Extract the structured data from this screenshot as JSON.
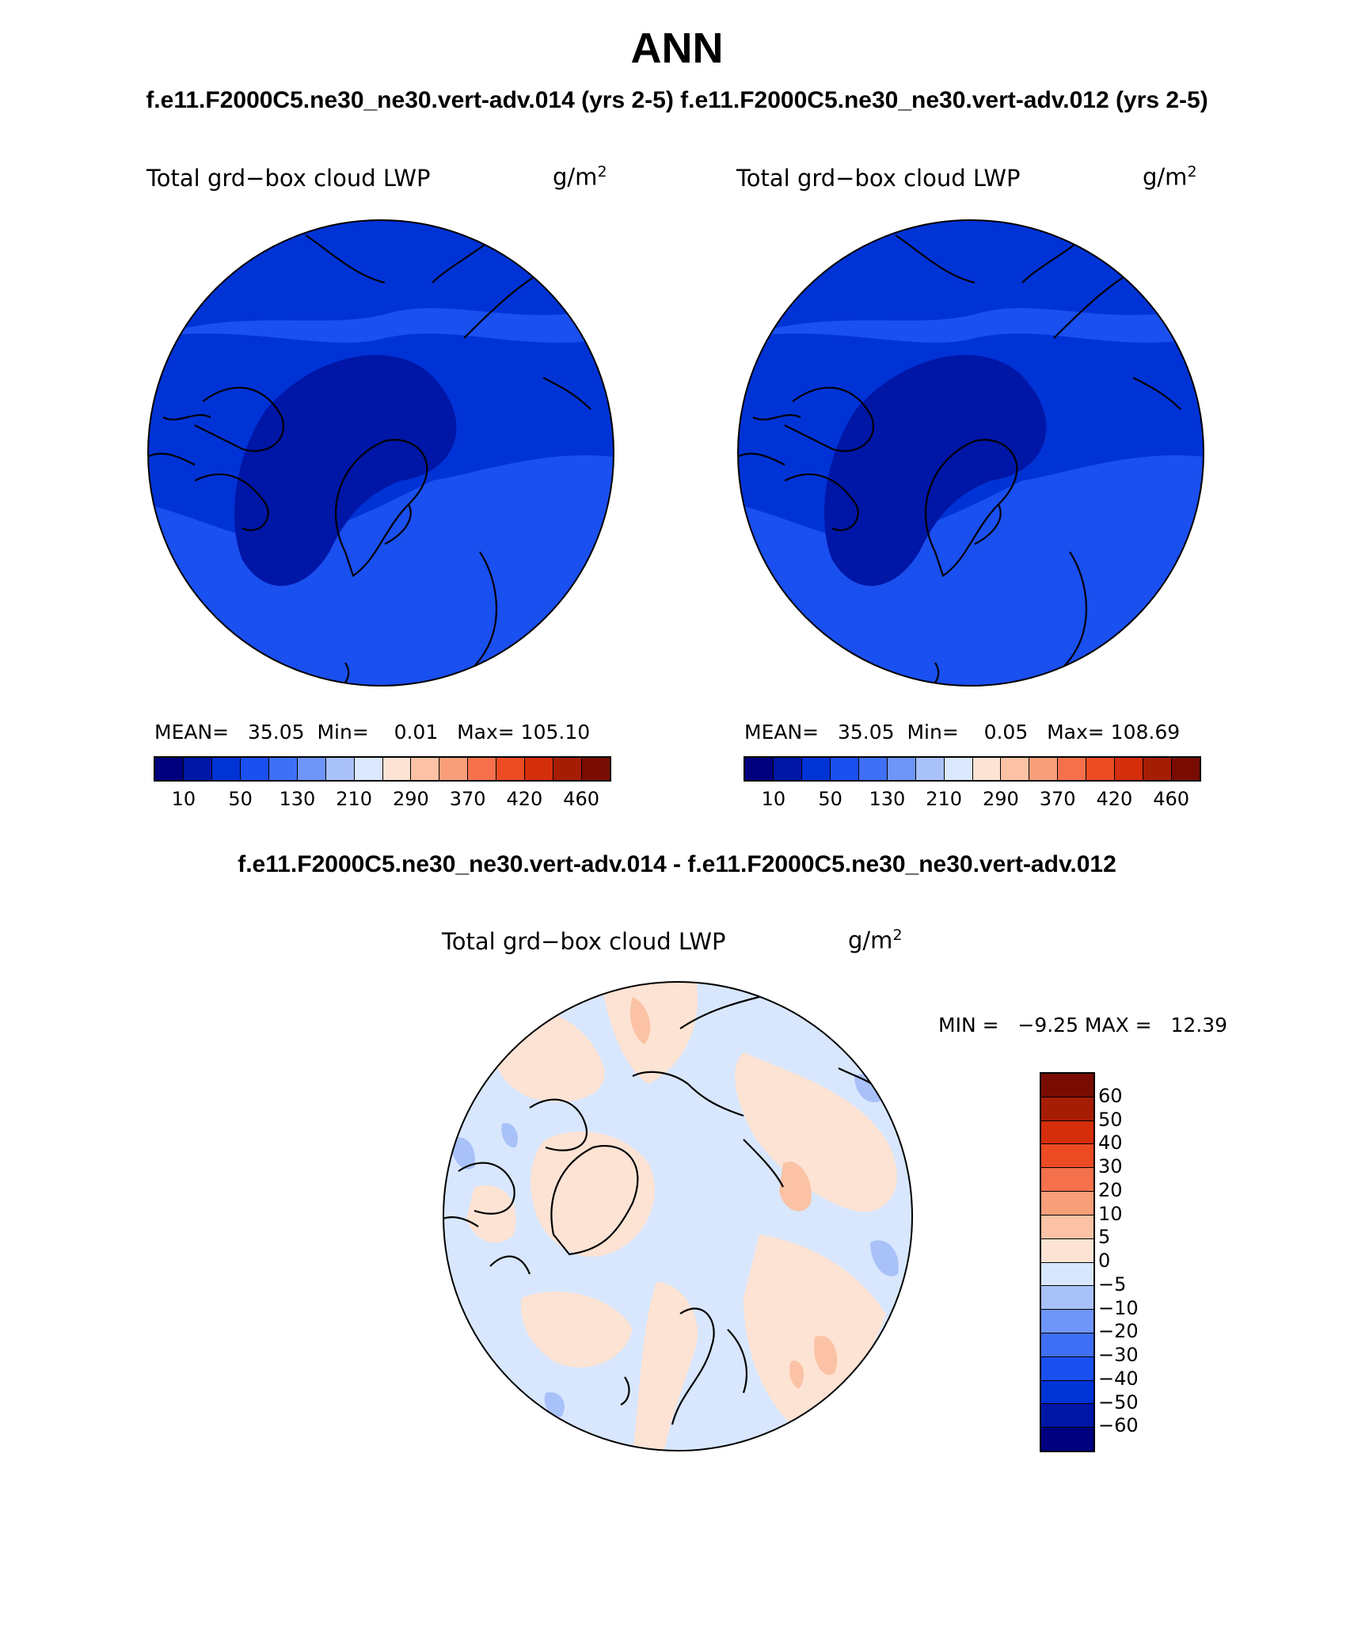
{
  "header": {
    "title": "ANN",
    "cases_line": "f.e11.F2000C5.ne30_ne30.vert-adv.014 (yrs 2-5) f.e11.F2000C5.ne30_ne30.vert-adv.012 (yrs 2-5)",
    "diff_title": "f.e11.F2000C5.ne30_ne30.vert-adv.014 - f.e11.F2000C5.ne30_ne30.vert-adv.012"
  },
  "colors": {
    "abs_scale": [
      "#00007f",
      "#0016a6",
      "#0033d6",
      "#1a4ff0",
      "#3f6ff5",
      "#6e95f7",
      "#a9c1f9",
      "#dbe8fd",
      "#fde3d4",
      "#fbc2a5",
      "#f89e79",
      "#f4714c",
      "#ec4b23",
      "#d42e0d",
      "#a61d06",
      "#780c03"
    ],
    "diff_scale": [
      "#00007f",
      "#0016a6",
      "#0033d6",
      "#1a4ff0",
      "#3f6ff5",
      "#6e95f7",
      "#a9c1f9",
      "#d8e7fd",
      "#fde3d4",
      "#fbc2a5",
      "#f89e79",
      "#f4714c",
      "#ec4b23",
      "#d42e0d",
      "#a61d06",
      "#780c03"
    ]
  },
  "panels": {
    "left": {
      "var_label": "Total grd−box cloud LWP",
      "units_base": "g/m",
      "units_exp": "2",
      "mean_label": "MEAN=",
      "mean_value": "35.05",
      "min_label": "Min=",
      "min_value": "0.01",
      "max_label": "Max=",
      "max_value": "105.10",
      "tick_labels": [
        "10",
        "50",
        "130",
        "210",
        "290",
        "370",
        "420",
        "460"
      ]
    },
    "right": {
      "var_label": "Total grd−box cloud LWP",
      "units_base": "g/m",
      "units_exp": "2",
      "mean_label": "MEAN=",
      "mean_value": "35.05",
      "min_label": "Min=",
      "min_value": "0.05",
      "max_label": "Max=",
      "max_value": "108.69",
      "tick_labels": [
        "10",
        "50",
        "130",
        "210",
        "290",
        "370",
        "420",
        "460"
      ]
    },
    "diff": {
      "var_label": "Total grd−box cloud LWP",
      "units_base": "g/m",
      "units_exp": "2",
      "minmax_text": "MIN =   −9.25 MAX =   12.39",
      "tick_labels": [
        "60",
        "50",
        "40",
        "30",
        "20",
        "10",
        "5",
        "0",
        "−5",
        "−10",
        "−20",
        "−30",
        "−40",
        "−50",
        "−60"
      ]
    }
  }
}
